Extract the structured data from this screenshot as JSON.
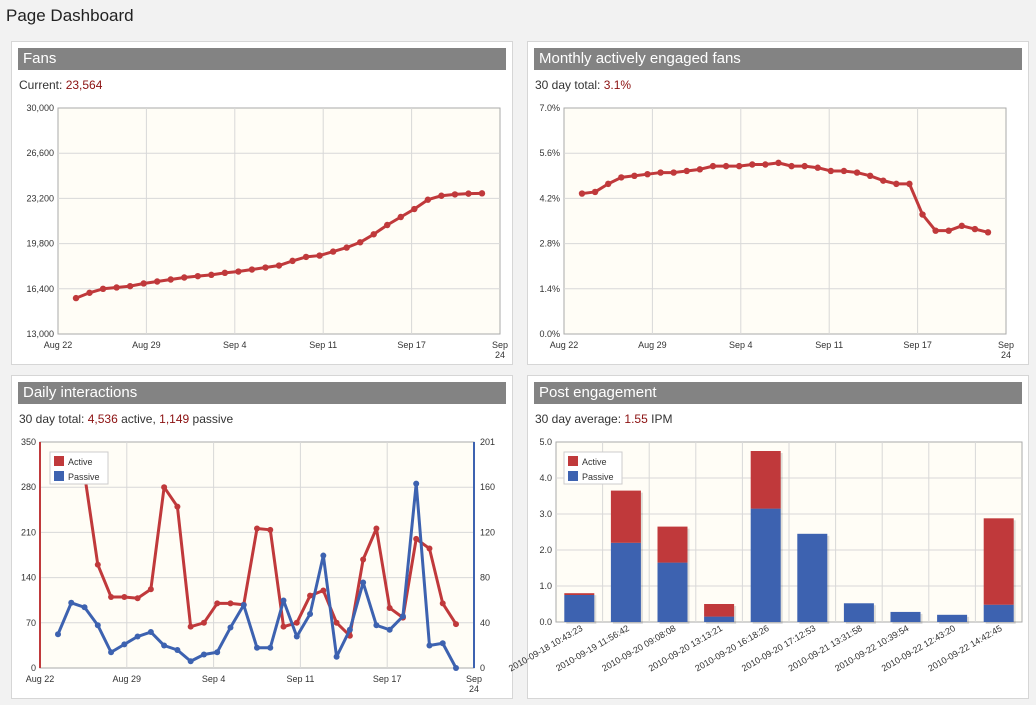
{
  "page": {
    "title": "Page Dashboard"
  },
  "colors": {
    "red": "#c0393b",
    "blue": "#3d62b0",
    "plot_bg": "#fffdf6",
    "grid": "#d8d8d8"
  },
  "panels": {
    "fans": {
      "title": "Fans",
      "sub_label": "Current:",
      "sub_value": "23,564"
    },
    "engaged": {
      "title": "Monthly actively engaged fans",
      "sub_label": "30 day total:",
      "sub_value": "3.1%"
    },
    "daily": {
      "title": "Daily interactions",
      "sub_label": "30 day total:",
      "active_value": "4,536",
      "active_word": "active,",
      "passive_value": "1,149",
      "passive_word": "passive"
    },
    "post": {
      "title": "Post engagement",
      "sub_label": "30 day average:",
      "sub_value": "1.55",
      "sub_unit": "IPM"
    }
  },
  "chart_data": [
    {
      "type": "line",
      "x_ticks": [
        "Aug 22",
        "Aug 29",
        "Sep 4",
        "Sep 11",
        "Sep 17",
        "Sep 24"
      ],
      "y_ticks": [
        "13,000",
        "16,400",
        "19,800",
        "23,200",
        "26,600",
        "30,000"
      ],
      "ylim": [
        13000,
        30000
      ],
      "series": [
        {
          "values": [
            15700,
            16100,
            16400,
            16500,
            16600,
            16800,
            16950,
            17100,
            17250,
            17350,
            17450,
            17600,
            17700,
            17850,
            18000,
            18150,
            18500,
            18800,
            18900,
            19200,
            19500,
            19900,
            20500,
            21200,
            21800,
            22400,
            23100,
            23400,
            23500,
            23560,
            23580
          ]
        }
      ]
    },
    {
      "type": "line",
      "x_ticks": [
        "Aug 22",
        "Aug 29",
        "Sep 4",
        "Sep 11",
        "Sep 17",
        "Sep 24"
      ],
      "y_ticks": [
        "0.0%",
        "1.4%",
        "2.8%",
        "4.2%",
        "5.6%",
        "7.0%"
      ],
      "ylim": [
        0,
        7
      ],
      "series": [
        {
          "values": [
            4.35,
            4.4,
            4.65,
            4.85,
            4.9,
            4.95,
            5.0,
            5.0,
            5.05,
            5.1,
            5.2,
            5.2,
            5.2,
            5.25,
            5.25,
            5.3,
            5.2,
            5.2,
            5.15,
            5.05,
            5.05,
            5.0,
            4.9,
            4.75,
            4.65,
            4.65,
            3.7,
            3.2,
            3.2,
            3.35,
            3.25,
            3.15
          ]
        }
      ]
    },
    {
      "type": "line",
      "x_ticks": [
        "Aug 22",
        "Aug 29",
        "Sep 4",
        "Sep 11",
        "Sep 17",
        "Sep 24"
      ],
      "y_left_ticks": [
        "0",
        "70",
        "140",
        "210",
        "280",
        "350"
      ],
      "y_right_ticks": [
        "0",
        "40",
        "80",
        "120",
        "160",
        "201"
      ],
      "ylim_left": [
        0,
        350
      ],
      "ylim_right": [
        0,
        201
      ],
      "series": [
        {
          "name": "Active",
          "axis": "left",
          "values": [
            null,
            320,
            300,
            160,
            110,
            110,
            108,
            122,
            280,
            250,
            64,
            70,
            100,
            100,
            98,
            216,
            214,
            64,
            70,
            112,
            120,
            70,
            50,
            168,
            216,
            93,
            78,
            200,
            185,
            100,
            68
          ]
        },
        {
          "name": "Passive",
          "axis": "right",
          "values": [
            30,
            58,
            54,
            38,
            14,
            21,
            28,
            32,
            20,
            16,
            6,
            12,
            14,
            36,
            56,
            18,
            18,
            60,
            28,
            48,
            100,
            10,
            34,
            76,
            38,
            34,
            46,
            164,
            20,
            22,
            0
          ]
        }
      ]
    },
    {
      "type": "bar",
      "categories": [
        "2010-09-18 10:43:23",
        "2010-09-19 11:56:42",
        "2010-09-20 09:08:08",
        "2010-09-20 13:13:21",
        "2010-09-20 16:18:26",
        "2010-09-20 17:12:53",
        "2010-09-21 13:31:58",
        "2010-09-22 10:39:54",
        "2010-09-22 12:43:20",
        "2010-09-22 14:42:45"
      ],
      "y_ticks": [
        "0.0",
        "1.0",
        "2.0",
        "3.0",
        "4.0",
        "5.0"
      ],
      "ylim": [
        0,
        5
      ],
      "series": [
        {
          "name": "Passive",
          "values": [
            0.75,
            2.2,
            1.65,
            0.15,
            3.15,
            2.45,
            0.52,
            0.28,
            0.2,
            0.48
          ]
        },
        {
          "name": "Active",
          "values": [
            0.05,
            1.45,
            1.0,
            0.35,
            1.6,
            0,
            0,
            0,
            0,
            2.4
          ]
        }
      ]
    }
  ]
}
